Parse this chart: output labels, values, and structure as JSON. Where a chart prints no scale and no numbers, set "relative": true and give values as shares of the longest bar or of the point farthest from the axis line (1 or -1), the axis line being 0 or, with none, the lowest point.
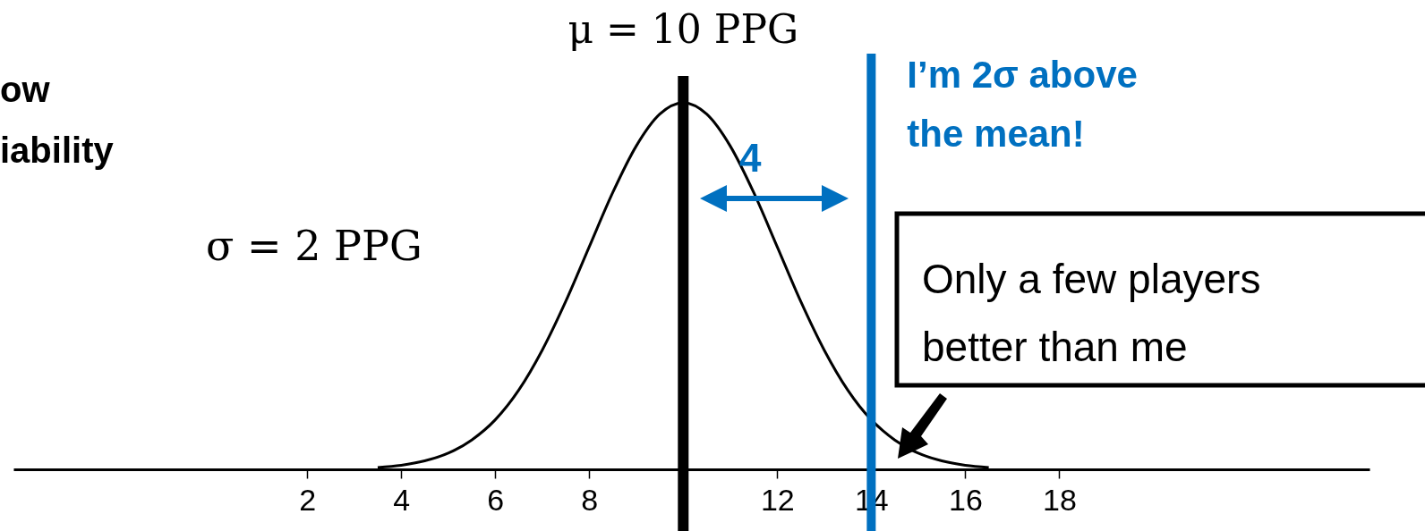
{
  "chart_data": {
    "type": "line",
    "relative": true,
    "x": [
      3.5,
      4,
      4.5,
      5,
      5.5,
      6,
      6.5,
      7,
      7.5,
      8,
      8.5,
      9,
      9.5,
      10,
      10.5,
      11,
      11.5,
      12,
      12.5,
      13,
      13.5,
      13.75,
      14.25,
      14.5,
      15,
      15.5,
      16,
      16.5
    ],
    "series": [
      {
        "color": "#000000",
        "values": [
          0.005,
          0.011,
          0.023,
          0.044,
          0.08,
          0.135,
          0.216,
          0.325,
          0.458,
          0.607,
          0.755,
          0.882,
          0.969,
          1,
          0.969,
          0.882,
          0.755,
          0.607,
          0.458,
          0.325,
          0.216,
          0.172,
          0.105,
          0.08,
          0.044,
          0.023,
          0.011,
          0.005
        ]
      }
    ],
    "xlim": [
      -4.25,
      24.6
    ],
    "xticks": [
      2,
      4,
      6,
      8,
      {
        "value": 10,
        "label": null
      },
      12,
      14,
      16,
      18
    ],
    "grid": false,
    "ref_lines": [
      {
        "axis": "x",
        "value": 10,
        "label": "μ = 10 PPG",
        "color": "#000000"
      },
      {
        "axis": "x",
        "value": 14,
        "label": "I’m 2σ above\nthe mean!",
        "color": "#0070c0"
      }
    ],
    "annotations": [
      "ow\niability",
      "σ = 2 PPG",
      "4",
      "Only a few players\nbetter than me"
    ]
  }
}
